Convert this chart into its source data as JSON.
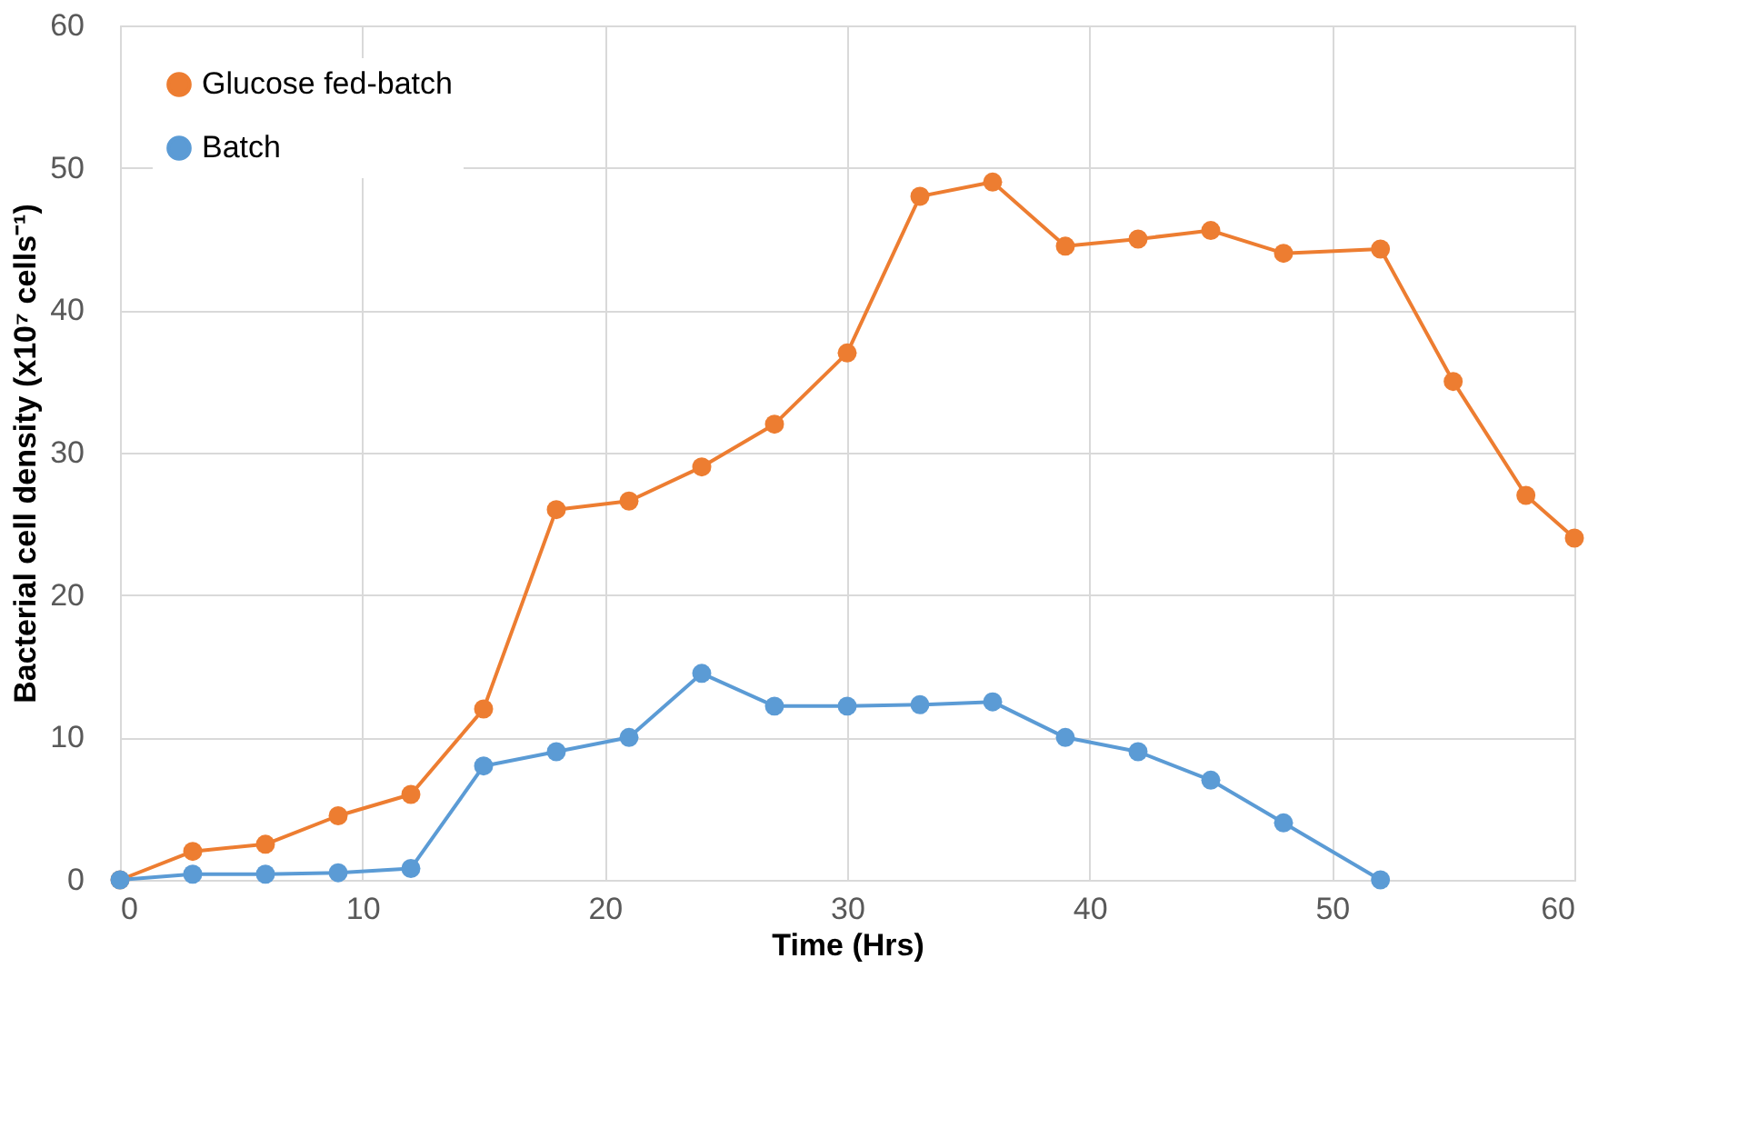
{
  "chart_data": {
    "type": "line",
    "xlabel": "Time (Hrs)",
    "ylabel": "Bacterial cell density (x10⁷ cells⁻¹)",
    "x": [
      0,
      3,
      6,
      9,
      12,
      15,
      18,
      21,
      24,
      27,
      30,
      33,
      36,
      39,
      42,
      45,
      48,
      52,
      55,
      58,
      60
    ],
    "series": [
      {
        "name": "Glucose fed-batch",
        "color": "#ed7d31",
        "values": [
          0,
          2,
          2.5,
          4.5,
          6,
          12,
          26,
          26.6,
          29,
          32,
          37,
          48,
          49,
          44.5,
          45,
          45.6,
          44,
          44.3,
          35,
          27,
          24
        ]
      },
      {
        "name": "Batch",
        "color": "#5b9bd5",
        "x": [
          0,
          3,
          6,
          9,
          12,
          15,
          18,
          21,
          24,
          27,
          30,
          33,
          36,
          39,
          42,
          45,
          48,
          52
        ],
        "values": [
          0,
          0.4,
          0.4,
          0.5,
          0.8,
          8,
          9,
          10,
          14.5,
          12.2,
          12.2,
          12.3,
          12.5,
          10,
          9,
          7,
          4,
          0
        ]
      }
    ],
    "xlim": [
      0,
      60
    ],
    "xticks": [
      0,
      10,
      20,
      30,
      40,
      50,
      60
    ],
    "ylim": [
      0,
      60
    ],
    "yticks": [
      0,
      10,
      20,
      30,
      40,
      50,
      60
    ],
    "grid": true,
    "legend": "top left",
    "marker": "circle",
    "line_style": "solid"
  }
}
